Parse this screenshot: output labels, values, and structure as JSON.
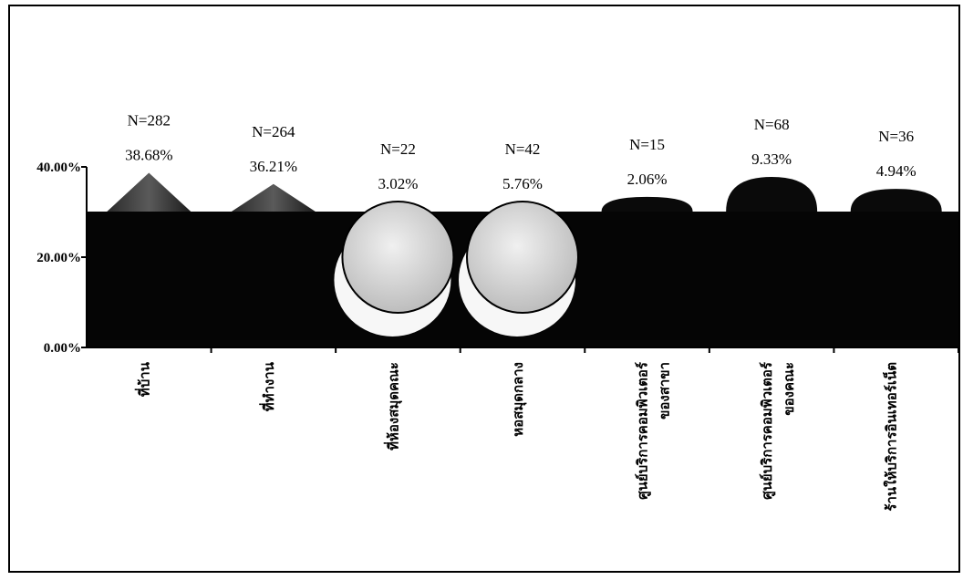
{
  "chart_data": {
    "type": "bar",
    "title": "",
    "xlabel": "",
    "ylabel": "",
    "ylim": [
      0,
      40
    ],
    "yticks": [
      "0.00%",
      "20.00%",
      "40.00%"
    ],
    "categories": [
      [
        "ที่บ้าน"
      ],
      [
        "ที่ทำงาน"
      ],
      [
        "ที่ห้องสมุดคณะ"
      ],
      [
        "หอสมุดกลาง"
      ],
      [
        "ศูนย์บริการคอมพิวเตอร์",
        "ของสาขา"
      ],
      [
        "ศูนย์บริการคอมพิวเตอร์",
        "ของคณะ"
      ],
      [
        "ร้านให้บริการอินเทอร์เน็ต"
      ]
    ],
    "values": [
      38.68,
      36.21,
      3.02,
      5.76,
      2.06,
      9.33,
      4.94
    ],
    "value_labels": [
      "38.68%",
      "36.21%",
      "3.02%",
      "5.76%",
      "2.06%",
      "9.33%",
      "4.94%"
    ],
    "counts": [
      "N=282",
      "N=264",
      "N=22",
      "N=42",
      "N=15",
      "N=68",
      "N=36"
    ],
    "shapes": [
      "cone",
      "cone",
      "ball",
      "ball",
      "dome",
      "dome",
      "dome"
    ],
    "colors": {
      "back_wall": "#050505",
      "cone": "#4a4a4a",
      "ball": "#dcdcdc",
      "dome": "#0a0a0a",
      "axis": "#000000"
    }
  }
}
